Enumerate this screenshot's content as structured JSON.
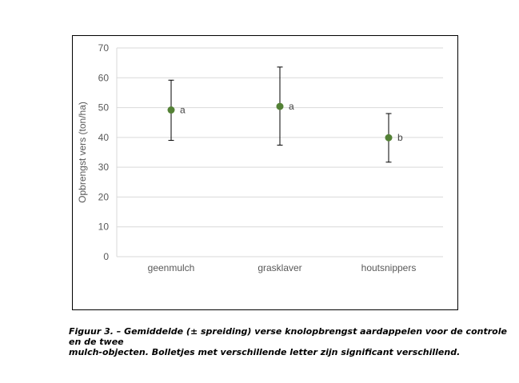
{
  "chart_data": {
    "type": "scatter",
    "title": "",
    "xlabel": "",
    "ylabel": "Opbrengst vers (ton/ha)",
    "ylim": [
      0,
      70
    ],
    "yticks": [
      0,
      10,
      20,
      30,
      40,
      50,
      60,
      70
    ],
    "grid": true,
    "categories": [
      "geenmulch",
      "grasklaver",
      "houtsnippers"
    ],
    "values": [
      49.2,
      50.4,
      39.9
    ],
    "error_low": [
      39.0,
      37.4,
      31.7
    ],
    "error_high": [
      59.2,
      63.6,
      48.0
    ],
    "significance_letters": [
      "a",
      "a",
      "b"
    ],
    "marker_color": "#538135",
    "errorbar_color": "#000000",
    "grid_color": "#d9d9d9"
  },
  "caption": {
    "line1": "Figuur 3. – Gemiddelde (± spreiding) verse knolopbrengst aardappelen voor de controle en de twee",
    "line2": "mulch-objecten. Bolletjes met verschillende letter zijn significant verschillend."
  }
}
